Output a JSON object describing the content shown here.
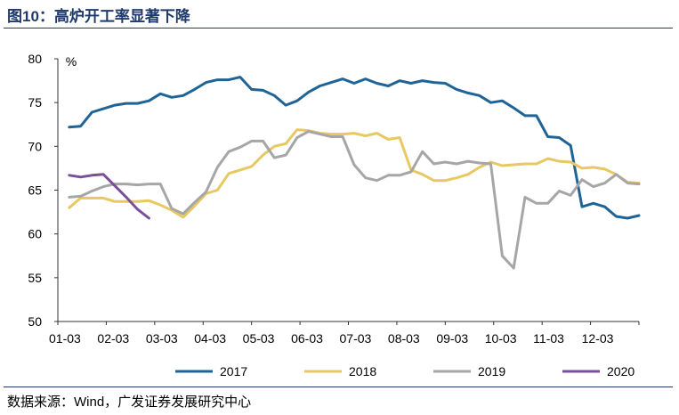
{
  "title": "图10：高炉开工率显著下降",
  "source": "数据来源：Wind，广发证券发展研究中心",
  "chart_data": {
    "type": "line",
    "unit_label": "%",
    "x_ticks": [
      "01-03",
      "02-03",
      "03-03",
      "04-03",
      "05-03",
      "06-03",
      "07-03",
      "08-03",
      "09-03",
      "10-03",
      "11-03",
      "12-03"
    ],
    "y_ticks": [
      50,
      55,
      60,
      65,
      70,
      75,
      80
    ],
    "ylim": [
      50,
      80
    ],
    "xlim": [
      1,
      52
    ],
    "grid": false,
    "legend_position": "bottom",
    "series": [
      {
        "name": "2017",
        "color": "#1f6496",
        "x": [
          2,
          3,
          4,
          5,
          6,
          7,
          8,
          9,
          10,
          11,
          12,
          13,
          14,
          15,
          16,
          17,
          18,
          19,
          20,
          21,
          22,
          23,
          24,
          25,
          26,
          27,
          28,
          29,
          30,
          31,
          32,
          33,
          34,
          35,
          36,
          37,
          38,
          39,
          40,
          41,
          42,
          43,
          44,
          45,
          46,
          47,
          48,
          49,
          50,
          51,
          52
        ],
        "y": [
          72.2,
          72.3,
          73.9,
          74.3,
          74.7,
          74.9,
          74.9,
          75.2,
          76.0,
          75.6,
          75.8,
          76.5,
          77.3,
          77.6,
          77.6,
          77.9,
          76.5,
          76.4,
          75.8,
          74.7,
          75.2,
          76.2,
          76.9,
          77.3,
          77.7,
          77.2,
          77.7,
          77.2,
          76.9,
          77.5,
          77.2,
          77.5,
          77.3,
          77.2,
          76.5,
          76.1,
          75.8,
          75.0,
          75.2,
          74.4,
          73.5,
          73.5,
          71.1,
          71.0,
          70.1,
          63.1,
          63.5,
          63.1,
          62.0,
          61.8,
          62.1
        ]
      },
      {
        "name": "2018",
        "color": "#e8c862",
        "x": [
          2,
          3,
          4,
          5,
          6,
          7,
          8,
          9,
          10,
          11,
          12,
          13,
          14,
          15,
          16,
          17,
          18,
          19,
          20,
          21,
          22,
          23,
          24,
          25,
          26,
          27,
          28,
          29,
          30,
          31,
          32,
          33,
          34,
          35,
          36,
          37,
          38,
          39,
          40,
          41,
          42,
          43,
          44,
          45,
          46,
          47,
          48,
          49,
          50,
          51,
          52
        ],
        "y": [
          63.0,
          64.1,
          64.1,
          64.1,
          63.7,
          63.7,
          63.7,
          63.8,
          63.3,
          62.7,
          61.9,
          63.2,
          64.6,
          65.0,
          66.9,
          67.3,
          67.7,
          69.0,
          70.0,
          70.3,
          71.9,
          71.8,
          71.5,
          71.4,
          71.4,
          71.5,
          71.2,
          71.5,
          70.8,
          71.0,
          67.3,
          66.8,
          66.1,
          66.1,
          66.4,
          66.8,
          67.6,
          68.2,
          67.8,
          67.9,
          68.0,
          68.0,
          68.6,
          68.3,
          68.2,
          67.5,
          67.6,
          67.4,
          66.8,
          65.9,
          65.8
        ]
      },
      {
        "name": "2019",
        "color": "#a6a6a6",
        "x": [
          2,
          3,
          4,
          5,
          6,
          7,
          8,
          9,
          10,
          11,
          12,
          13,
          14,
          15,
          16,
          17,
          18,
          19,
          20,
          21,
          22,
          23,
          24,
          25,
          26,
          27,
          28,
          29,
          30,
          31,
          32,
          33,
          34,
          35,
          36,
          37,
          38,
          39,
          40,
          41,
          42,
          43,
          44,
          45,
          46,
          47,
          48,
          49,
          50,
          51,
          52
        ],
        "y": [
          64.2,
          64.3,
          64.9,
          65.4,
          65.7,
          65.7,
          65.6,
          65.7,
          65.7,
          62.9,
          62.3,
          63.6,
          64.8,
          67.6,
          69.4,
          69.9,
          70.6,
          70.6,
          68.7,
          69.0,
          71.0,
          71.7,
          71.4,
          71.1,
          71.1,
          67.9,
          66.4,
          66.1,
          66.7,
          66.7,
          67.1,
          69.4,
          68.0,
          68.2,
          68.0,
          68.3,
          68.1,
          68.0,
          57.5,
          56.1,
          64.2,
          63.5,
          63.5,
          64.9,
          64.4,
          66.2,
          65.4,
          65.8,
          66.8,
          65.8,
          65.7
        ]
      },
      {
        "name": "2020",
        "color": "#7a4f9a",
        "x": [
          2,
          3,
          4,
          5,
          6,
          7,
          8,
          9
        ],
        "y": [
          66.7,
          66.5,
          66.7,
          66.8,
          65.5,
          64.2,
          62.8,
          61.8
        ]
      }
    ]
  }
}
